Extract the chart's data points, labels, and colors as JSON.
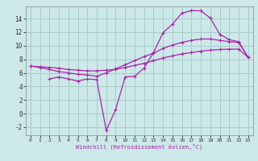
{
  "xlabel": "Windchill (Refroidissement éolien,°C)",
  "bg_color": "#cce8e8",
  "grid_color": "#aacccc",
  "line_color": "#aa22aa",
  "xlim": [
    -0.5,
    23.5
  ],
  "ylim": [
    -3.2,
    15.8
  ],
  "xticks": [
    0,
    1,
    2,
    3,
    4,
    5,
    6,
    7,
    8,
    9,
    10,
    11,
    12,
    13,
    14,
    15,
    16,
    17,
    18,
    19,
    20,
    21,
    22,
    23
  ],
  "yticks": [
    -2,
    0,
    2,
    4,
    6,
    8,
    10,
    12,
    14
  ],
  "line1_x": [
    0,
    1,
    2,
    3,
    4,
    5,
    6,
    7,
    8,
    9,
    10,
    11,
    12,
    13,
    14,
    15,
    16,
    17,
    18,
    19,
    20,
    21,
    22,
    23
  ],
  "line1_y": [
    7.0,
    6.9,
    6.8,
    6.7,
    6.5,
    6.4,
    6.3,
    6.3,
    6.4,
    6.5,
    6.8,
    7.1,
    7.4,
    7.8,
    8.2,
    8.5,
    8.8,
    9.0,
    9.2,
    9.35,
    9.45,
    9.5,
    9.5,
    8.3
  ],
  "line2_x": [
    0,
    1,
    2,
    3,
    4,
    5,
    6,
    7,
    8,
    9,
    10,
    11,
    12,
    13,
    14,
    15,
    16,
    17,
    18,
    19,
    20,
    21,
    22,
    23
  ],
  "line2_y": [
    7.0,
    6.8,
    6.5,
    6.2,
    6.0,
    5.8,
    5.7,
    5.5,
    6.0,
    6.6,
    7.2,
    7.8,
    8.4,
    8.9,
    9.6,
    10.1,
    10.5,
    10.8,
    11.0,
    11.0,
    10.8,
    10.6,
    10.5,
    8.3
  ],
  "line3_x": [
    2,
    3,
    4,
    5,
    6,
    7,
    8,
    9,
    10,
    11,
    12,
    13,
    14,
    15,
    16,
    17,
    18,
    19,
    20,
    21,
    22,
    23
  ],
  "line3_y": [
    5.1,
    5.4,
    5.1,
    4.8,
    5.1,
    5.0,
    -2.5,
    0.6,
    5.4,
    5.5,
    6.7,
    9.0,
    11.9,
    13.2,
    14.8,
    15.2,
    15.15,
    14.1,
    11.7,
    10.9,
    10.6,
    8.3
  ]
}
